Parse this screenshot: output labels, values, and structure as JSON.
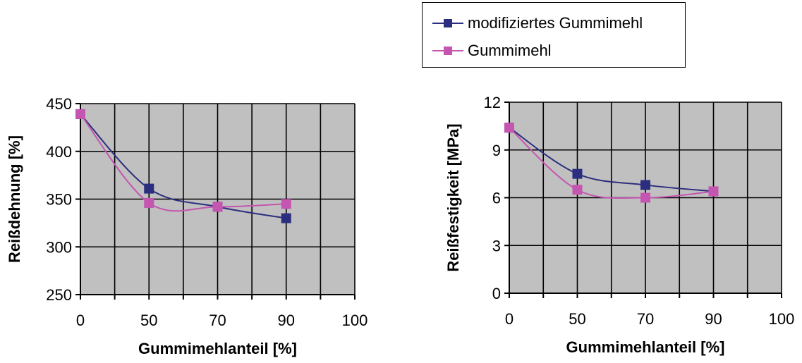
{
  "legend": {
    "items": [
      {
        "label": "modifiziertes Gummimehl",
        "color": "#2B2E7E"
      },
      {
        "label": "Gummimehl",
        "color": "#C455B0"
      }
    ]
  },
  "chart_data": [
    {
      "type": "line",
      "xlabel": "Gummimehlanteil [%]",
      "ylabel": "Reißdehnung [%]",
      "categories": [
        "0",
        "50",
        "70",
        "90",
        "100"
      ],
      "ylim": [
        250,
        450
      ],
      "yticks": [
        250,
        300,
        350,
        400,
        450
      ],
      "grid": true,
      "plot_background": "#C0C0C0",
      "series": [
        {
          "name": "modifiziertes Gummimehl",
          "color": "#2B2E7E",
          "points": [
            {
              "x": "0",
              "y": 439
            },
            {
              "x": "50",
              "y": 361
            },
            {
              "x": "70",
              "y": 342
            },
            {
              "x": "90",
              "y": 330
            }
          ]
        },
        {
          "name": "Gummimehl",
          "color": "#C455B0",
          "points": [
            {
              "x": "0",
              "y": 439
            },
            {
              "x": "50",
              "y": 346
            },
            {
              "x": "70",
              "y": 342
            },
            {
              "x": "90",
              "y": 345
            }
          ]
        }
      ]
    },
    {
      "type": "line",
      "xlabel": "Gummimehlanteil [%]",
      "ylabel": "Reißfestigkeit [MPa]",
      "categories": [
        "0",
        "50",
        "70",
        "90",
        "100"
      ],
      "ylim": [
        0,
        12
      ],
      "yticks": [
        0,
        3,
        6,
        9,
        12
      ],
      "grid": true,
      "plot_background": "#C0C0C0",
      "series": [
        {
          "name": "modifiziertes Gummimehl",
          "color": "#2B2E7E",
          "points": [
            {
              "x": "0",
              "y": 10.4
            },
            {
              "x": "50",
              "y": 7.5
            },
            {
              "x": "70",
              "y": 6.8
            },
            {
              "x": "90",
              "y": 6.4
            }
          ]
        },
        {
          "name": "Gummimehl",
          "color": "#C455B0",
          "points": [
            {
              "x": "0",
              "y": 10.4
            },
            {
              "x": "50",
              "y": 6.5
            },
            {
              "x": "70",
              "y": 6.0
            },
            {
              "x": "90",
              "y": 6.4
            }
          ]
        }
      ]
    }
  ]
}
